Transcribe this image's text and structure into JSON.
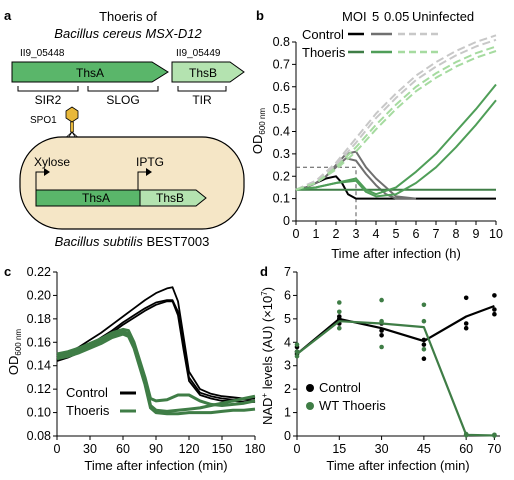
{
  "colors": {
    "control": "#000000",
    "control_mid": "#707070",
    "control_light": "#c8c8c8",
    "thoeris": "#3f7d46",
    "thoeris_mid": "#4f9e58",
    "thoeris_light": "#a6dba0",
    "gene_dark": "#5ab66a",
    "gene_light": "#b4e3b0",
    "cell_fill": "#f5e6c6",
    "phage": "#e8b83a"
  },
  "panel_a": {
    "label": "a",
    "title_line1": "Thoeris of",
    "title_line2": "Bacillus cereus MSX-D12",
    "locus_left": "II9_05448",
    "locus_right": "II9_05449",
    "gene_thsA": "ThsA",
    "gene_thsB": "ThsB",
    "domain_sir2": "SIR2",
    "domain_slog": "SLOG",
    "domain_tir": "TIR",
    "phage": "SPO1",
    "promoter_xylose": "Xylose",
    "promoter_iptg": "IPTG",
    "cell_gene_thsA": "ThsA",
    "cell_gene_thsB": "ThsB",
    "host_italic": "Bacillus subtilis",
    "host_strain": "BEST7003"
  },
  "panel_b": {
    "label": "b",
    "legend_moi": "MOI",
    "legend_moi_high": "5",
    "legend_moi_low": "0.05",
    "legend_uninfected": "Uninfected",
    "legend_control": "Control",
    "legend_thoeris": "Thoeris",
    "chart_data": {
      "type": "line",
      "ylabel": "OD600 nm",
      "ylabel_main": "OD",
      "ylabel_sub": "600 nm",
      "xlabel": "Time after infection (h)",
      "xlim": [
        0,
        10
      ],
      "ylim": [
        0,
        0.8
      ],
      "xticks": [
        0,
        1,
        2,
        3,
        4,
        5,
        6,
        7,
        8,
        9,
        10
      ],
      "yticks": [
        0,
        0.1,
        0.2,
        0.3,
        0.4,
        0.5,
        0.6,
        0.7,
        0.8
      ],
      "inset_box": {
        "x_max": 3,
        "y_max": 0.24
      },
      "series": [
        {
          "name": "Control MOI 5",
          "style": "control",
          "x": [
            0,
            0.5,
            1,
            1.5,
            2,
            2.3,
            2.6,
            3,
            4,
            5,
            6,
            7,
            8,
            9,
            10
          ],
          "y": [
            0.14,
            0.15,
            0.17,
            0.19,
            0.2,
            0.17,
            0.12,
            0.1,
            0.1,
            0.1,
            0.1,
            0.1,
            0.1,
            0.1,
            0.1
          ]
        },
        {
          "name": "Control MOI 0.05",
          "style": "control_mid",
          "x": [
            0,
            0.5,
            1,
            1.5,
            2,
            2.5,
            3,
            3.5,
            4,
            4.5,
            5,
            6
          ],
          "y": [
            0.14,
            0.15,
            0.17,
            0.2,
            0.24,
            0.28,
            0.27,
            0.21,
            0.16,
            0.12,
            0.1,
            0.1
          ]
        },
        {
          "name": "Control MOI 0.05 (replicate 2)",
          "style": "control_mid",
          "x": [
            0,
            0.5,
            1,
            1.5,
            2,
            2.5,
            3,
            3.5,
            4,
            4.5,
            5,
            6
          ],
          "y": [
            0.14,
            0.15,
            0.17,
            0.2,
            0.25,
            0.3,
            0.31,
            0.24,
            0.19,
            0.15,
            0.11,
            0.1
          ]
        },
        {
          "name": "Control uninfected",
          "style": "control_light",
          "x": [
            0,
            1,
            2,
            3,
            4,
            5,
            6,
            7,
            8,
            9,
            10
          ],
          "y": [
            0.14,
            0.18,
            0.26,
            0.37,
            0.48,
            0.57,
            0.65,
            0.71,
            0.76,
            0.8,
            0.83
          ]
        },
        {
          "name": "Control uninfected (replicate 2)",
          "style": "control_light",
          "x": [
            0,
            1,
            2,
            3,
            4,
            5,
            6,
            7,
            8,
            9,
            10
          ],
          "y": [
            0.14,
            0.18,
            0.25,
            0.35,
            0.46,
            0.55,
            0.63,
            0.69,
            0.74,
            0.78,
            0.81
          ]
        },
        {
          "name": "Thoeris MOI 5",
          "style": "thoeris",
          "x": [
            0,
            1,
            2,
            3,
            4,
            5,
            6,
            7,
            8,
            9,
            10
          ],
          "y": [
            0.14,
            0.14,
            0.14,
            0.14,
            0.14,
            0.14,
            0.14,
            0.14,
            0.14,
            0.14,
            0.14
          ]
        },
        {
          "name": "Thoeris MOI 0.05",
          "style": "thoeris_mid",
          "x": [
            0,
            1,
            2,
            3,
            3.5,
            4,
            5,
            6,
            7,
            8,
            9,
            10
          ],
          "y": [
            0.14,
            0.15,
            0.17,
            0.19,
            0.14,
            0.12,
            0.15,
            0.22,
            0.3,
            0.4,
            0.5,
            0.61
          ]
        },
        {
          "name": "Thoeris MOI 0.05 (replicate 2)",
          "style": "thoeris_mid",
          "x": [
            0,
            1,
            2,
            3,
            3.5,
            4,
            5,
            6,
            7,
            8,
            9,
            10
          ],
          "y": [
            0.14,
            0.15,
            0.17,
            0.18,
            0.13,
            0.11,
            0.12,
            0.17,
            0.24,
            0.33,
            0.43,
            0.54
          ]
        },
        {
          "name": "Thoeris uninfected",
          "style": "thoeris_light",
          "x": [
            0,
            1,
            2,
            3,
            4,
            5,
            6,
            7,
            8,
            9,
            10
          ],
          "y": [
            0.14,
            0.17,
            0.24,
            0.33,
            0.43,
            0.52,
            0.6,
            0.66,
            0.71,
            0.75,
            0.78
          ]
        },
        {
          "name": "Thoeris uninfected (replicate 2)",
          "style": "thoeris_light",
          "x": [
            0,
            1,
            2,
            3,
            4,
            5,
            6,
            7,
            8,
            9,
            10
          ],
          "y": [
            0.14,
            0.17,
            0.23,
            0.31,
            0.41,
            0.5,
            0.58,
            0.64,
            0.69,
            0.73,
            0.76
          ]
        }
      ]
    }
  },
  "panel_c": {
    "label": "c",
    "legend_control": "Control",
    "legend_thoeris": "Thoeris",
    "chart_data": {
      "type": "line",
      "ylabel": "OD600 nm",
      "ylabel_main": "OD",
      "ylabel_sub": "600 nm",
      "xlabel": "Time after infection (min)",
      "xlim": [
        0,
        180
      ],
      "ylim": [
        0.08,
        0.22
      ],
      "xticks": [
        0,
        30,
        60,
        90,
        120,
        150,
        180
      ],
      "yticks": [
        0.08,
        0.1,
        0.12,
        0.14,
        0.16,
        0.18,
        0.2,
        0.22
      ],
      "series": [
        {
          "name": "Control replicate 1",
          "style": "control",
          "x": [
            0,
            10,
            20,
            30,
            40,
            50,
            60,
            70,
            80,
            90,
            100,
            105,
            110,
            115,
            120,
            130,
            140,
            150,
            160,
            170,
            180
          ],
          "y": [
            0.148,
            0.151,
            0.156,
            0.162,
            0.168,
            0.175,
            0.182,
            0.189,
            0.196,
            0.202,
            0.206,
            0.207,
            0.195,
            0.165,
            0.135,
            0.12,
            0.116,
            0.114,
            0.113,
            0.112,
            0.112
          ]
        },
        {
          "name": "Control replicate 2",
          "style": "control",
          "x": [
            0,
            10,
            20,
            30,
            40,
            50,
            60,
            70,
            80,
            90,
            100,
            105,
            110,
            115,
            120,
            130,
            140,
            150,
            160,
            170,
            180
          ],
          "y": [
            0.146,
            0.149,
            0.153,
            0.158,
            0.164,
            0.17,
            0.177,
            0.183,
            0.189,
            0.194,
            0.196,
            0.196,
            0.186,
            0.158,
            0.13,
            0.117,
            0.114,
            0.112,
            0.111,
            0.111,
            0.11
          ]
        },
        {
          "name": "Control replicate 3",
          "style": "control",
          "x": [
            0,
            10,
            20,
            30,
            40,
            50,
            60,
            70,
            80,
            90,
            100,
            105,
            110,
            115,
            120,
            130,
            140,
            150,
            160,
            170,
            180
          ],
          "y": [
            0.144,
            0.147,
            0.151,
            0.156,
            0.162,
            0.168,
            0.175,
            0.181,
            0.187,
            0.192,
            0.195,
            0.195,
            0.183,
            0.154,
            0.127,
            0.115,
            0.112,
            0.11,
            0.11,
            0.109,
            0.109
          ]
        },
        {
          "name": "Thoeris replicate 1",
          "style": "thoeris",
          "x": [
            0,
            10,
            20,
            30,
            40,
            50,
            60,
            65,
            70,
            80,
            85,
            90,
            100,
            110,
            120,
            130,
            140,
            150,
            160,
            170,
            180
          ],
          "y": [
            0.15,
            0.152,
            0.155,
            0.159,
            0.163,
            0.168,
            0.171,
            0.17,
            0.16,
            0.13,
            0.112,
            0.11,
            0.111,
            0.115,
            0.115,
            0.11,
            0.107,
            0.106,
            0.107,
            0.108,
            0.11
          ]
        },
        {
          "name": "Thoeris replicate 2",
          "style": "thoeris",
          "x": [
            0,
            10,
            20,
            30,
            40,
            50,
            60,
            65,
            70,
            80,
            85,
            90,
            100,
            110,
            120,
            130,
            140,
            150,
            160,
            170,
            180
          ],
          "y": [
            0.148,
            0.15,
            0.153,
            0.157,
            0.161,
            0.166,
            0.169,
            0.167,
            0.157,
            0.127,
            0.106,
            0.102,
            0.101,
            0.102,
            0.103,
            0.104,
            0.106,
            0.108,
            0.11,
            0.112,
            0.114
          ]
        },
        {
          "name": "Thoeris replicate 3",
          "style": "thoeris",
          "x": [
            0,
            10,
            20,
            30,
            40,
            50,
            60,
            65,
            70,
            80,
            85,
            90,
            100,
            110,
            120,
            130,
            140,
            150,
            160,
            170,
            180
          ],
          "y": [
            0.146,
            0.148,
            0.151,
            0.155,
            0.159,
            0.164,
            0.167,
            0.165,
            0.155,
            0.124,
            0.104,
            0.1,
            0.099,
            0.099,
            0.1,
            0.1,
            0.1,
            0.101,
            0.102,
            0.102,
            0.103
          ]
        }
      ]
    }
  },
  "panel_d": {
    "label": "d",
    "legend_control": "Control",
    "legend_thoeris": "WT Thoeris",
    "chart_data": {
      "type": "scatter",
      "ylabel": "NAD+ levels (AU) (×10⁷)",
      "ylabel_prefix": "NAD",
      "ylabel_sup": "+",
      "ylabel_mid": " levels (AU) (×10",
      "ylabel_exp": "7",
      "ylabel_end": ")",
      "xlabel": "Time after infection (min)",
      "xlim": [
        0,
        72
      ],
      "ylim": [
        0,
        7
      ],
      "xticks": [
        0,
        15,
        30,
        45,
        60,
        70
      ],
      "yticks": [
        0,
        1,
        2,
        3,
        4,
        5,
        6,
        7
      ],
      "series": [
        {
          "name": "Control",
          "style": "control",
          "x": [
            0,
            15,
            30,
            45,
            60,
            70
          ],
          "y": [
            3.5,
            5.0,
            4.6,
            4.05,
            5.1,
            5.55
          ],
          "points_x": [
            0,
            0,
            0,
            15,
            15,
            15,
            30,
            30,
            30,
            45,
            45,
            45,
            60,
            60,
            60,
            70,
            70,
            70
          ],
          "points_y": [
            3.5,
            3.6,
            3.8,
            5.0,
            5.1,
            4.8,
            4.8,
            4.5,
            4.3,
            3.9,
            4.1,
            3.3,
            5.9,
            4.8,
            4.6,
            6.0,
            5.4,
            5.2
          ]
        },
        {
          "name": "WT Thoeris",
          "style": "thoeris",
          "x": [
            0,
            15,
            30,
            45,
            60,
            70
          ],
          "y": [
            3.5,
            4.9,
            4.8,
            4.65,
            0.05,
            0.02
          ],
          "points_x": [
            0,
            0,
            0,
            15,
            15,
            15,
            30,
            30,
            30,
            45,
            45,
            45,
            60,
            60,
            60,
            70,
            70,
            70
          ],
          "points_y": [
            3.4,
            3.6,
            3.9,
            5.7,
            5.3,
            4.6,
            5.8,
            4.9,
            3.8,
            5.6,
            4.9,
            3.7,
            0.05,
            0.08,
            0.03,
            0.02,
            0.05,
            0.03
          ]
        }
      ]
    }
  }
}
